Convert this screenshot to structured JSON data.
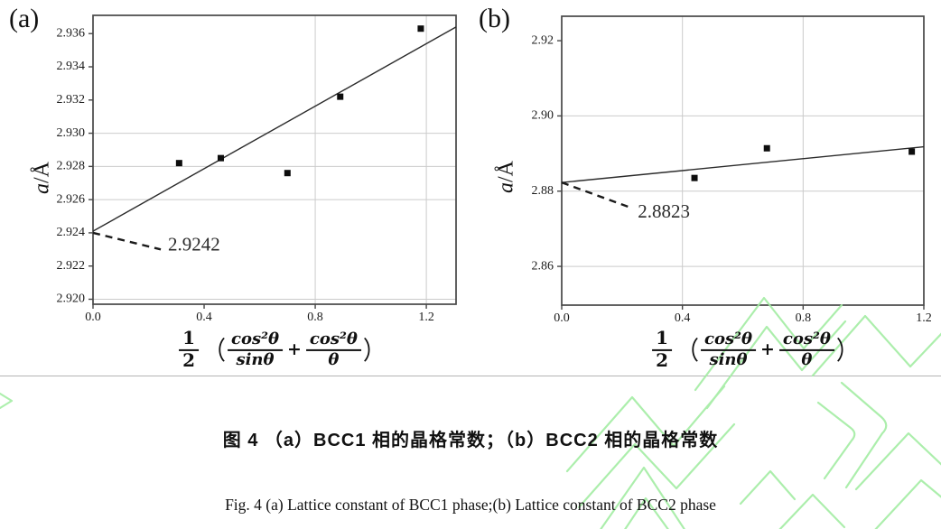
{
  "page": {
    "background": "#ffffff",
    "watermark_color": "#a4eda4",
    "rule_color": "#b4b4b4"
  },
  "captions": {
    "chinese": "图 4 （a）BCC1 相的晶格常数；（b）BCC2 相的晶格常数",
    "english": "Fig. 4 (a) Lattice constant of BCC1 phase;(b) Lattice constant of BCC2 phase"
  },
  "formula": {
    "half_num": "1",
    "half_den": "2",
    "open_paren": "（",
    "num1": "cos²θ",
    "den1": "sinθ",
    "plus": "+",
    "num2": "cos²θ",
    "den2": "θ",
    "close_paren": "）"
  },
  "chart_data": [
    {
      "type": "scatter",
      "panel_label": "(a)",
      "title": "Lattice constant of BCC1 phase",
      "ylabel": "a/Å",
      "ylabel_var": "a",
      "ylabel_rest": "/Å",
      "xlabel": "1/2 (cos²θ/sinθ + cos²θ/θ)",
      "xlim": [
        0,
        1.307
      ],
      "ylim": [
        2.9197,
        2.9371
      ],
      "xticks": [
        [
          0,
          "0.0"
        ],
        [
          0.4,
          "0.4"
        ],
        [
          0.8,
          "0.8"
        ],
        [
          1.2,
          "1.2"
        ]
      ],
      "yticks": [
        [
          2.92,
          "2.920"
        ],
        [
          2.922,
          "2.922"
        ],
        [
          2.924,
          "2.924"
        ],
        [
          2.926,
          "2.926"
        ],
        [
          2.928,
          "2.928"
        ],
        [
          2.93,
          "2.930"
        ],
        [
          2.932,
          "2.932"
        ],
        [
          2.934,
          "2.934"
        ],
        [
          2.936,
          "2.936"
        ]
      ],
      "grid_x": [
        0.8,
        1.2
      ],
      "grid_y": [
        2.92,
        2.926,
        2.928,
        2.93
      ],
      "points": [
        [
          0.31,
          2.9282
        ],
        [
          0.46,
          2.9285
        ],
        [
          0.7,
          2.9276
        ],
        [
          0.89,
          2.9322
        ],
        [
          1.18,
          2.9363
        ]
      ],
      "fit_line": {
        "x1": 0,
        "y1": 2.9241,
        "x2": 1.307,
        "y2": 2.9364
      },
      "annotation": {
        "text": "2.9242",
        "line": [
          [
            0,
            2.924
          ],
          [
            0.244,
            2.923
          ]
        ],
        "text_at": [
          0.27,
          2.9232
        ]
      }
    },
    {
      "type": "scatter",
      "panel_label": "(b)",
      "title": "Lattice constant of BCC2 phase",
      "ylabel": "a/Å",
      "ylabel_var": "a",
      "ylabel_rest": "/Å",
      "xlabel": "1/2 (cos²θ/sinθ + cos²θ/θ)",
      "xlim": [
        0,
        1.2
      ],
      "ylim": [
        2.8497,
        2.9265
      ],
      "xticks": [
        [
          0,
          "0.0"
        ],
        [
          0.4,
          "0.4"
        ],
        [
          0.8,
          "0.8"
        ],
        [
          1.2,
          "1.2"
        ]
      ],
      "yticks": [
        [
          2.86,
          "2.86"
        ],
        [
          2.88,
          "2.88"
        ],
        [
          2.9,
          "2.90"
        ],
        [
          2.92,
          "2.92"
        ]
      ],
      "grid_x": [
        0.4,
        0.8
      ],
      "grid_y": [
        2.86,
        2.88,
        2.9
      ],
      "points": [
        [
          0.44,
          2.8835
        ],
        [
          0.68,
          2.8914
        ],
        [
          1.16,
          2.8905
        ]
      ],
      "fit_line": {
        "x1": 0,
        "y1": 2.8823,
        "x2": 1.2,
        "y2": 2.8918
      },
      "annotation": {
        "text": "2.8823",
        "line": [
          [
            0,
            2.8823
          ],
          [
            0.222,
            2.8758
          ]
        ],
        "text_at": [
          0.252,
          2.8741
        ]
      }
    }
  ]
}
